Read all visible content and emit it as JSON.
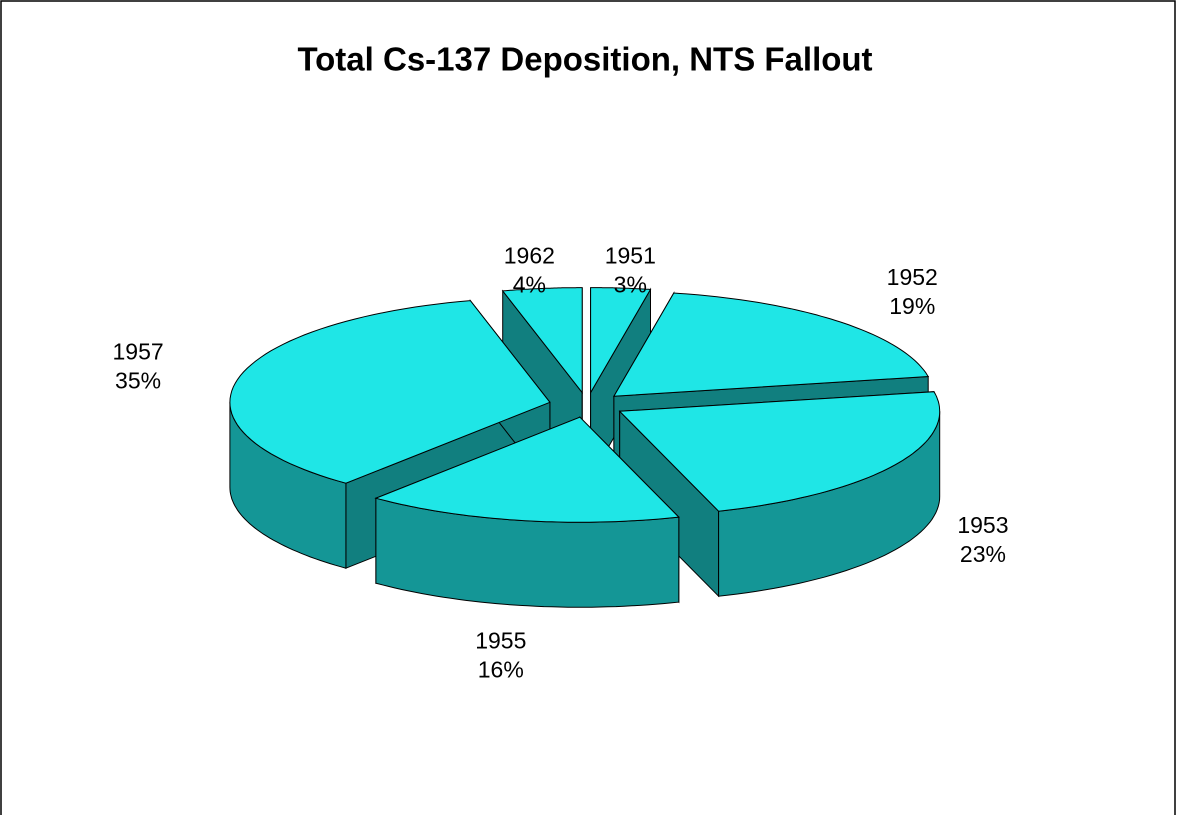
{
  "chart_data": {
    "type": "pie3d",
    "title": "Total Cs-137 Deposition, NTS Fallout",
    "categories": [
      "1951",
      "1952",
      "1953",
      "1955",
      "1957",
      "1962"
    ],
    "values": [
      3,
      19,
      23,
      16,
      35,
      4
    ],
    "value_labels": [
      "3%",
      "19%",
      "23%",
      "16%",
      "35%",
      "4%"
    ],
    "color": "#1fe6e6",
    "exploded": true
  }
}
